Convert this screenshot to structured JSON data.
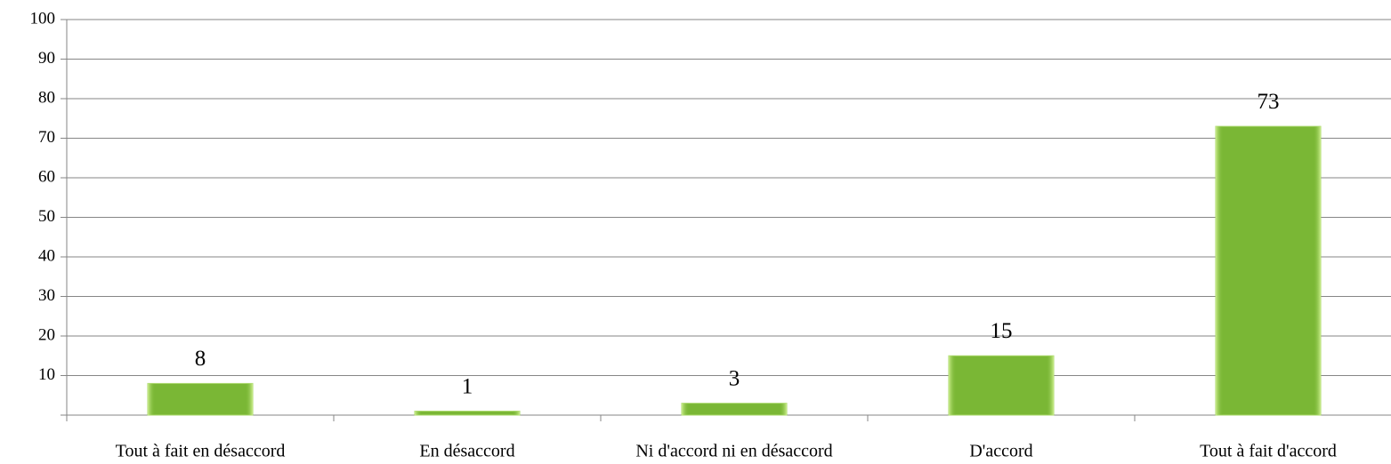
{
  "chart_data": {
    "type": "bar",
    "categories": [
      "Tout à fait en désaccord",
      "En désaccord",
      "Ni d'accord ni en désaccord",
      "D'accord",
      "Tout à fait d'accord"
    ],
    "values": [
      8,
      1,
      3,
      15,
      73
    ],
    "color": "#7ab735",
    "ylim": [
      0,
      100
    ],
    "yticks": [
      10,
      20,
      30,
      40,
      50,
      60,
      70,
      80,
      90,
      100
    ],
    "grid": true
  }
}
